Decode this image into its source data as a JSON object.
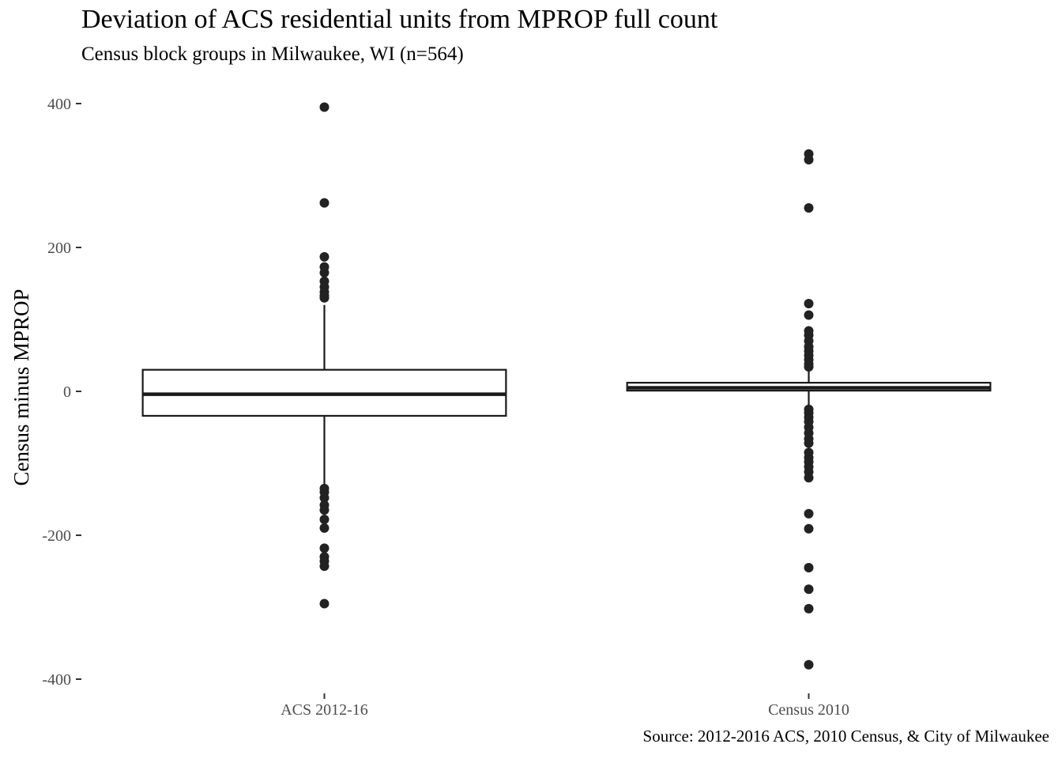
{
  "chart_data": {
    "type": "box",
    "title": "Deviation of ACS residential units from MPROP full count",
    "subtitle": "Census block groups in Milwaukee, WI (n=564)",
    "caption": "Source: 2012-2016 ACS, 2010 Census, & City of Milwaukee",
    "xlabel": "",
    "ylabel": "Census minus MPROP",
    "ylim": [
      -415,
      415
    ],
    "yticks": [
      400,
      200,
      0,
      -200,
      -400
    ],
    "ytick_labels": [
      "400",
      "200",
      "0",
      "-200",
      "-400"
    ],
    "grid": false,
    "legend": "none",
    "categories": [
      "ACS 2012-16",
      "Census 2010"
    ],
    "boxes": [
      {
        "category": "ACS 2012-16",
        "whisker_low": -132,
        "q1": -34,
        "median": -4,
        "q3": 30,
        "whisker_high": 120,
        "outliers": [
          395,
          262,
          187,
          173,
          165,
          153,
          145,
          138,
          133,
          130,
          -135,
          -140,
          -148,
          -158,
          -165,
          -178,
          -190,
          -218,
          -230,
          -236,
          -243,
          -295
        ]
      },
      {
        "category": "Census 2010",
        "whisker_low": -21,
        "q1": 1,
        "median": 5,
        "q3": 12,
        "whisker_high": 32,
        "outliers": [
          330,
          322,
          255,
          122,
          106,
          84,
          78,
          70,
          62,
          56,
          50,
          44,
          38,
          34,
          -25,
          -30,
          -36,
          -42,
          -50,
          -58,
          -66,
          -72,
          -85,
          -92,
          -98,
          -105,
          -112,
          -120,
          -170,
          -191,
          -245,
          -275,
          -302,
          -380
        ]
      }
    ],
    "colors": {
      "box_stroke": "#1a1a1a",
      "box_fill": "#ffffff",
      "point": "#222222",
      "axis_text": "#4d4d4d"
    }
  }
}
